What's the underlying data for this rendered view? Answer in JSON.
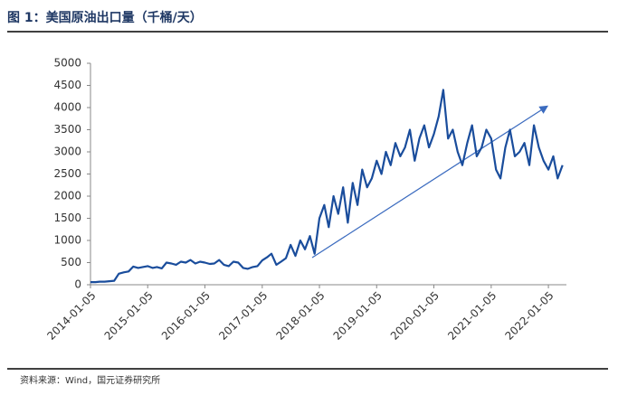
{
  "chart_data": {
    "type": "line",
    "title": "图 1：美国原油出口量（千桶/天）",
    "source": "资料来源：Wind，国元证券研究所",
    "x": [
      "2014-01-05",
      "2014-02-05",
      "2014-03-05",
      "2014-04-05",
      "2014-05-05",
      "2014-06-05",
      "2014-07-05",
      "2014-08-05",
      "2014-09-05",
      "2014-10-05",
      "2014-11-05",
      "2014-12-05",
      "2015-01-05",
      "2015-02-05",
      "2015-03-05",
      "2015-04-05",
      "2015-05-05",
      "2015-06-05",
      "2015-07-05",
      "2015-08-05",
      "2015-09-05",
      "2015-10-05",
      "2015-11-05",
      "2015-12-05",
      "2016-01-05",
      "2016-02-05",
      "2016-03-05",
      "2016-04-05",
      "2016-05-05",
      "2016-06-05",
      "2016-07-05",
      "2016-08-05",
      "2016-09-05",
      "2016-10-05",
      "2016-11-05",
      "2016-12-05",
      "2017-01-05",
      "2017-02-05",
      "2017-03-05",
      "2017-04-05",
      "2017-05-05",
      "2017-06-05",
      "2017-07-05",
      "2017-08-05",
      "2017-09-05",
      "2017-10-05",
      "2017-11-05",
      "2017-12-05",
      "2018-01-05",
      "2018-02-05",
      "2018-03-05",
      "2018-04-05",
      "2018-05-05",
      "2018-06-05",
      "2018-07-05",
      "2018-08-05",
      "2018-09-05",
      "2018-10-05",
      "2018-11-05",
      "2018-12-05",
      "2019-01-05",
      "2019-02-05",
      "2019-03-05",
      "2019-04-05",
      "2019-05-05",
      "2019-06-05",
      "2019-07-05",
      "2019-08-05",
      "2019-09-05",
      "2019-10-05",
      "2019-11-05",
      "2019-12-05",
      "2020-01-05",
      "2020-02-05",
      "2020-03-05",
      "2020-04-05",
      "2020-05-05",
      "2020-06-05",
      "2020-07-05",
      "2020-08-05",
      "2020-09-05",
      "2020-10-05",
      "2020-11-05",
      "2020-12-05",
      "2021-01-05",
      "2021-02-05",
      "2021-03-05",
      "2021-04-05",
      "2021-05-05",
      "2021-06-05",
      "2021-07-05",
      "2021-08-05",
      "2021-09-05",
      "2021-10-05",
      "2021-11-05",
      "2021-12-05",
      "2022-01-05",
      "2022-02-05",
      "2022-03-05",
      "2022-04-05"
    ],
    "series": [
      {
        "color": "#1a4d9c",
        "values": [
          60,
          60,
          70,
          70,
          80,
          90,
          250,
          280,
          300,
          410,
          380,
          400,
          420,
          380,
          400,
          370,
          500,
          480,
          450,
          520,
          500,
          560,
          480,
          520,
          500,
          470,
          480,
          560,
          450,
          420,
          520,
          500,
          380,
          360,
          400,
          420,
          550,
          620,
          700,
          450,
          520,
          600,
          900,
          650,
          1000,
          800,
          1100,
          700,
          1500,
          1800,
          1300,
          2000,
          1600,
          2200,
          1400,
          2300,
          1800,
          2600,
          2200,
          2400,
          2800,
          2500,
          3000,
          2700,
          3200,
          2900,
          3100,
          3500,
          2800,
          3300,
          3600,
          3100,
          3400,
          3800,
          4400,
          3300,
          3500,
          3000,
          2700,
          3200,
          3600,
          2900,
          3100,
          3500,
          3300,
          2600,
          2400,
          3100,
          3500,
          2900,
          3000,
          3200,
          2700,
          3600,
          3100,
          2800,
          2600,
          2900,
          2400,
          2700
        ]
      }
    ],
    "xlim": [
      "2014-01-05",
      "2022-04-30"
    ],
    "xticks": [
      "2014-01-05",
      "2015-01-05",
      "2016-01-05",
      "2017-01-05",
      "2018-01-05",
      "2019-01-05",
      "2020-01-05",
      "2021-01-05",
      "2022-01-05"
    ],
    "ylim": [
      0,
      5000
    ],
    "yticks": [
      0,
      500,
      1000,
      1500,
      2000,
      2500,
      3000,
      3500,
      4000,
      4500,
      5000
    ],
    "grid": false
  }
}
